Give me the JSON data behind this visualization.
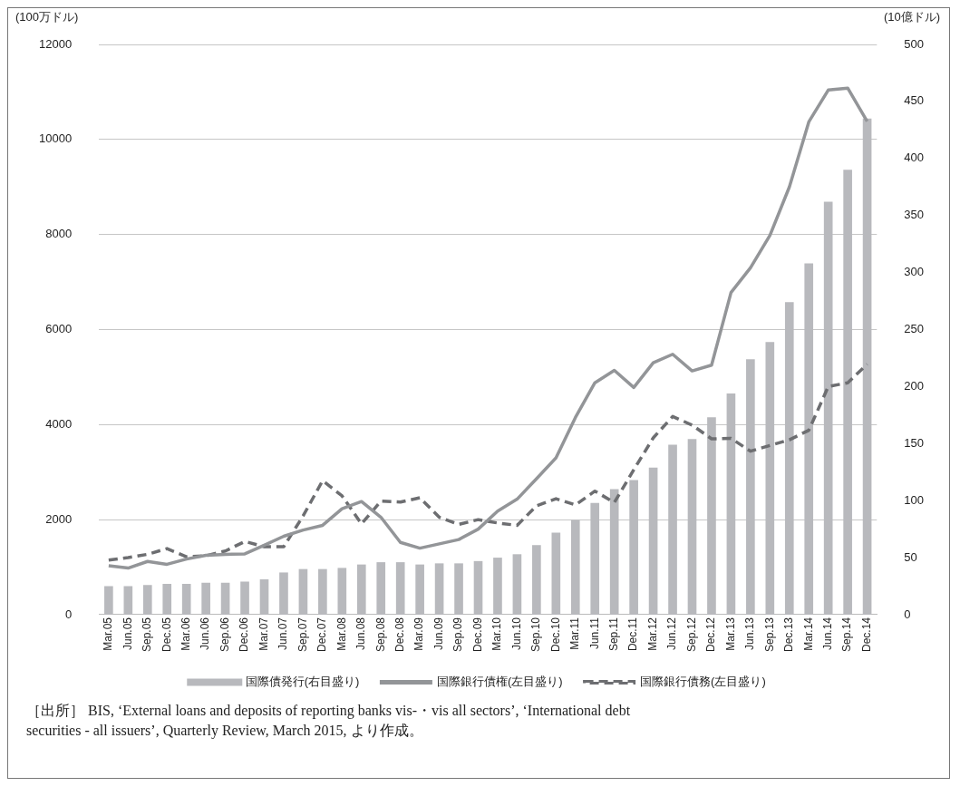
{
  "chart_data": {
    "type": "bar",
    "ylabel": "(100万ドル)",
    "y2label": "(10億ドル)",
    "categories": [
      "Mar.05",
      "Jun.05",
      "Sep.05",
      "Dec.05",
      "Mar.06",
      "Jun.06",
      "Sep.06",
      "Dec.06",
      "Mar.07",
      "Jun.07",
      "Sep.07",
      "Dec.07",
      "Mar.08",
      "Jun.08",
      "Sep.08",
      "Dec.08",
      "Mar.09",
      "Jun.09",
      "Sep.09",
      "Dec.09",
      "Mar.10",
      "Jun.10",
      "Sep.10",
      "Dec.10",
      "Mar.11",
      "Jun.11",
      "Sep.11",
      "Dec.11",
      "Mar.12",
      "Jun.12",
      "Sep.12",
      "Dec.12",
      "Mar.13",
      "Jun.13",
      "Sep.13",
      "Dec.13",
      "Mar.14",
      "Jun.14",
      "Sep.14",
      "Dec.14"
    ],
    "series": [
      {
        "name": "国際債発行(右目盛り)",
        "axis": "y2",
        "color": "#b8b9bd",
        "values": [
          25,
          25,
          26,
          27,
          27,
          28,
          28,
          29,
          31,
          37,
          40,
          40,
          41,
          44,
          46,
          46,
          44,
          45,
          45,
          47,
          50,
          53,
          61,
          72,
          83,
          98,
          110,
          118,
          129,
          149,
          154,
          173,
          194,
          224,
          239,
          274,
          308,
          362,
          390,
          435
        ]
      },
      {
        "name": "国際銀行債権(左目盛り)",
        "type": "line",
        "axis": "y",
        "line_style": "solid",
        "color": "#939598",
        "values": [
          1030,
          980,
          1120,
          1060,
          1170,
          1250,
          1270,
          1280,
          1460,
          1650,
          1780,
          1880,
          2230,
          2380,
          2050,
          1520,
          1400,
          1490,
          1580,
          1800,
          2180,
          2430,
          2860,
          3300,
          4150,
          4880,
          5140,
          4780,
          5300,
          5480,
          5130,
          5250,
          6780,
          7300,
          7980,
          9000,
          10370,
          11040,
          11080,
          10380
        ]
      },
      {
        "name": "国際銀行債務(左目盛り)",
        "type": "line",
        "axis": "y",
        "line_style": "dashed",
        "color": "#6d6e71",
        "values": [
          1150,
          1200,
          1270,
          1390,
          1220,
          1240,
          1340,
          1540,
          1430,
          1430,
          2080,
          2820,
          2500,
          1910,
          2390,
          2370,
          2460,
          2050,
          1900,
          2000,
          1930,
          1880,
          2290,
          2440,
          2310,
          2600,
          2360,
          3050,
          3720,
          4170,
          3990,
          3700,
          3710,
          3440,
          3560,
          3680,
          3880,
          4800,
          4880,
          5270
        ]
      }
    ],
    "ylim": [
      0,
      12000
    ],
    "yticks": [
      0,
      2000,
      4000,
      6000,
      8000,
      10000,
      12000
    ],
    "y2lim": [
      0,
      500
    ],
    "y2ticks": [
      0,
      50,
      100,
      150,
      200,
      250,
      300,
      350,
      400,
      450,
      500
    ],
    "grid": "y",
    "legend": "bottom",
    "marker": "none",
    "annotations": [
      "［出所］ BIS, ‘External loans and deposits of reporting banks vis-・vis all sectors’, ‘International debt securities - all issuers’, Quarterly Review, March 2015, より作成。"
    ]
  }
}
